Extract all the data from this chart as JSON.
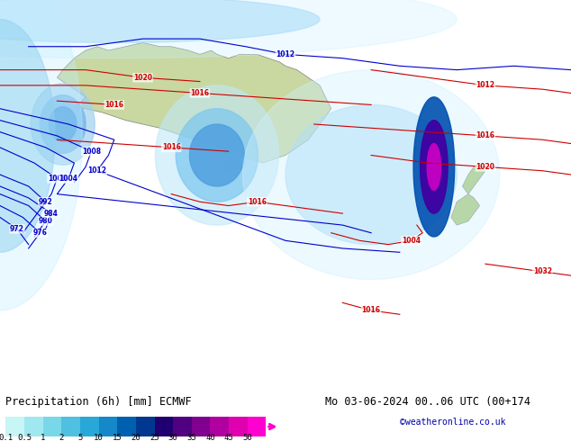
{
  "title_left": "Precipitation (6h) [mm] ECMWF",
  "title_right": "Mo 03-06-2024 00..06 UTC (00+174",
  "credit": "©weatheronline.co.uk",
  "colorbar_levels": [
    0.1,
    0.5,
    1,
    2,
    5,
    10,
    15,
    20,
    25,
    30,
    35,
    40,
    45,
    50
  ],
  "colorbar_colors": [
    "#c8f5f5",
    "#a0e8f0",
    "#78d8e8",
    "#50c0e0",
    "#28a8d8",
    "#1488c8",
    "#0060b0",
    "#003890",
    "#200070",
    "#500080",
    "#800090",
    "#b000a0",
    "#e000b0",
    "#ff00d0"
  ],
  "bg_color": "#cceeff",
  "fig_bg": "#ffffff",
  "font_color": "#000000",
  "label_fontsize": 7.5,
  "title_fontsize": 8.5
}
